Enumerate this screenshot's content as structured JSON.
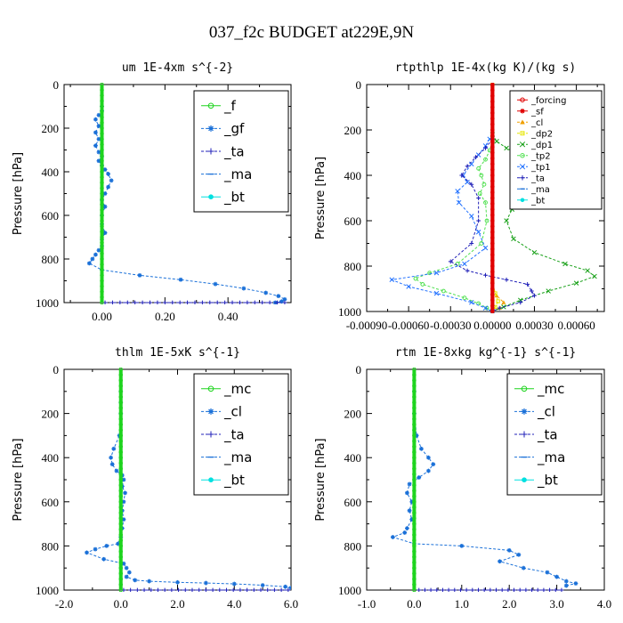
{
  "figure_title": "037_f2c  BUDGET at229E,9N",
  "colors": {
    "green": "#1fd41f",
    "blue": "#1a70d8",
    "navy": "#2020b8",
    "cyan": "#00e0e0",
    "red": "#e00000",
    "orange": "#f0a000",
    "yellow": "#e6e600",
    "darkgreen": "#18a018",
    "lightgreen": "#50e050",
    "midblue": "#2070ff"
  },
  "chart_data": [
    {
      "type": "line",
      "title": "um   1E-4xm s^{-2}",
      "ylabel": "Pressure [hPa]",
      "xlim": [
        -0.12,
        0.6
      ],
      "ylim": [
        1000,
        0
      ],
      "xticks": [
        0.0,
        0.2,
        0.4
      ],
      "xtick_labels": [
        "0.00",
        "0.20",
        "0.40"
      ],
      "yticks": [
        0,
        200,
        400,
        600,
        800,
        1000
      ],
      "ytick_labels": [
        "0",
        "200",
        "400",
        "600",
        "800",
        "1000"
      ],
      "legend": {
        "position": "top-right",
        "entries": [
          "_f",
          "_gf",
          "_ta",
          "_ma",
          "_bt"
        ],
        "font": 15
      },
      "series": [
        {
          "name": "_f",
          "color": "green",
          "marker": "circle",
          "style": "thick",
          "x": [
            0,
            0
          ],
          "y": [
            0,
            1000
          ]
        },
        {
          "name": "_gf",
          "color": "blue",
          "marker": "star",
          "style": "dashed",
          "x": [
            0.0,
            0.0,
            -0.01,
            -0.02,
            -0.01,
            -0.02,
            -0.01,
            -0.02,
            -0.01,
            0.0,
            -0.01,
            0.0,
            0.01,
            0.02,
            0.03,
            0.02,
            0.01,
            0.0,
            0.01,
            0.0,
            0.0,
            0.01,
            0.0,
            0.0,
            -0.01,
            -0.02,
            -0.03,
            -0.04,
            0.0,
            0.12,
            0.25,
            0.36,
            0.45,
            0.52,
            0.56,
            0.58,
            0.57,
            0.55
          ],
          "y": [
            100,
            120,
            140,
            160,
            190,
            220,
            250,
            280,
            310,
            330,
            350,
            370,
            390,
            410,
            440,
            470,
            500,
            530,
            560,
            600,
            640,
            680,
            710,
            740,
            760,
            780,
            800,
            820,
            850,
            875,
            895,
            915,
            935,
            955,
            970,
            985,
            995,
            1000
          ]
        },
        {
          "name": "_ta",
          "color": "navy",
          "marker": "plus",
          "style": "dashed",
          "x": [
            0.01,
            0.58
          ],
          "y": [
            1000,
            1000
          ]
        },
        {
          "name": "_ma",
          "color": "blue",
          "marker": "dash",
          "style": "dashed",
          "x": [
            0,
            0
          ],
          "y": [
            0,
            1000
          ]
        },
        {
          "name": "_bt",
          "color": "cyan",
          "marker": "dot",
          "style": "solid",
          "x": [
            0,
            0
          ],
          "y": [
            0,
            1000
          ]
        }
      ]
    },
    {
      "type": "line",
      "title": "rtpthlp   1E-4x(kg K)/(kg s)",
      "ylabel": "Pressure [hPa]",
      "xlim": [
        -0.0009,
        0.0008
      ],
      "ylim": [
        1000,
        0
      ],
      "xticks": [
        -0.0009,
        -0.0006,
        -0.0003,
        0.0,
        0.0003,
        0.0006
      ],
      "xtick_labels": [
        "-0.00090",
        "-0.00060",
        "-0.00030",
        "0.00000",
        "0.00030",
        "0.00060"
      ],
      "yticks": [
        0,
        200,
        400,
        600,
        800,
        1000
      ],
      "ytick_labels": [
        "0",
        "200",
        "400",
        "600",
        "800",
        "1000"
      ],
      "legend": {
        "position": "top-right",
        "entries": [
          "_forcing",
          "_sf",
          "_cl",
          "_dp2",
          "_dp1",
          "_tp2",
          "_tp1",
          "_ta",
          "_ma",
          "_bt"
        ],
        "font": 10
      },
      "series": [
        {
          "name": "_forcing",
          "color": "red",
          "marker": "circle",
          "style": "thick",
          "x": [
            0,
            0
          ],
          "y": [
            0,
            1000
          ]
        },
        {
          "name": "_sf",
          "color": "red",
          "marker": "star",
          "style": "thick",
          "x": [
            0,
            0
          ],
          "y": [
            0,
            1000
          ]
        },
        {
          "name": "_cl",
          "color": "orange",
          "marker": "triangle",
          "style": "dashed",
          "x": [
            0.0,
            0.0,
            0.0,
            3e-05,
            8e-05,
            5e-05,
            0.0
          ],
          "y": [
            0,
            850,
            900,
            930,
            960,
            985,
            1000
          ]
        },
        {
          "name": "_dp2",
          "color": "yellow",
          "marker": "square",
          "style": "dashed",
          "x": [
            0.0,
            0.0,
            2e-05,
            4e-05,
            2e-05,
            0.0
          ],
          "y": [
            0,
            870,
            920,
            955,
            980,
            1000
          ]
        },
        {
          "name": "_dp1",
          "color": "darkgreen",
          "marker": "x",
          "style": "dashed",
          "x": [
            0.0,
            3e-05,
            0.0001,
            0.0002,
            0.00032,
            0.00042,
            0.0005,
            0.00052,
            0.00043,
            0.0003,
            0.00022,
            0.00014,
            0.0001,
            0.00015,
            0.0003,
            0.00052,
            0.00068,
            0.00073,
            0.0006,
            0.0004,
            0.0002,
            8e-05,
            0.0
          ],
          "y": [
            220,
            250,
            280,
            310,
            340,
            370,
            400,
            420,
            440,
            460,
            500,
            550,
            600,
            680,
            740,
            790,
            820,
            845,
            875,
            910,
            950,
            980,
            1000
          ]
        },
        {
          "name": "_tp2",
          "color": "lightgreen",
          "marker": "circle",
          "style": "dashed",
          "x": [
            0.0,
            -2e-05,
            -5e-05,
            -0.0001,
            -8e-05,
            -6e-05,
            -9e-05,
            -5e-05,
            -4e-05,
            -8e-05,
            -0.00025,
            -0.00045,
            -0.00055,
            -0.0005,
            -0.00035,
            -0.0002,
            -0.0001,
            -4e-05,
            0.0
          ],
          "y": [
            250,
            290,
            330,
            370,
            400,
            440,
            480,
            520,
            600,
            700,
            790,
            830,
            855,
            880,
            910,
            940,
            965,
            985,
            1000
          ]
        },
        {
          "name": "_tp1",
          "color": "midblue",
          "marker": "x",
          "style": "dashed",
          "x": [
            -2e-05,
            -5e-05,
            -0.0001,
            -0.00015,
            -0.00021,
            -0.00018,
            -0.00025,
            -0.00024,
            -0.00015,
            -0.0001,
            -5e-05,
            -0.0002,
            -0.0004,
            -0.00072,
            -0.0006,
            -0.0004,
            -0.00015,
            -5e-05,
            0.0
          ],
          "y": [
            240,
            270,
            310,
            350,
            400,
            430,
            470,
            520,
            580,
            650,
            720,
            790,
            830,
            860,
            890,
            920,
            960,
            985,
            1000
          ]
        },
        {
          "name": "_ta",
          "color": "navy",
          "marker": "plus",
          "style": "dashed",
          "x": [
            0.0,
            -5e-05,
            -0.00012,
            -0.00018,
            -0.00022,
            -0.00015,
            -0.0001,
            -0.0001,
            -0.00015,
            -0.0003,
            -0.00018,
            -5e-05,
            0.0001,
            0.00025,
            0.00028,
            0.0003,
            0.0002,
            5e-05,
            0.0
          ],
          "y": [
            240,
            280,
            320,
            360,
            400,
            440,
            500,
            600,
            700,
            780,
            820,
            840,
            860,
            880,
            910,
            930,
            960,
            985,
            1000
          ]
        },
        {
          "name": "_ma",
          "color": "blue",
          "marker": "dash",
          "style": "dashed",
          "x": [
            0,
            0
          ],
          "y": [
            0,
            1000
          ]
        },
        {
          "name": "_bt",
          "color": "cyan",
          "marker": "dot",
          "style": "solid",
          "x": [
            0,
            0
          ],
          "y": [
            0,
            1000
          ]
        }
      ]
    },
    {
      "type": "line",
      "title": "thlm   1E-5xK s^{-1}",
      "ylabel": "Pressure [hPa]",
      "xlim": [
        -2.0,
        6.0
      ],
      "ylim": [
        1000,
        0
      ],
      "xticks": [
        -2,
        0,
        2,
        4,
        6
      ],
      "xtick_labels": [
        "-2.0",
        "0.0",
        "2.0",
        "4.0",
        "6.0"
      ],
      "yticks": [
        0,
        200,
        400,
        600,
        800,
        1000
      ],
      "ytick_labels": [
        "0",
        "200",
        "400",
        "600",
        "800",
        "1000"
      ],
      "legend": {
        "position": "top-right",
        "entries": [
          "_mc",
          "_cl",
          "_ta",
          "_ma",
          "_bt"
        ],
        "font": 15
      },
      "series": [
        {
          "name": "_mc",
          "color": "green",
          "marker": "circle",
          "style": "thick",
          "x": [
            0,
            0
          ],
          "y": [
            0,
            1000
          ]
        },
        {
          "name": "_cl",
          "color": "blue",
          "marker": "star",
          "style": "dashed",
          "x": [
            0.0,
            0.0,
            0.0,
            -0.05,
            -0.25,
            -0.35,
            -0.3,
            -0.15,
            0.05,
            0.1,
            0.05,
            0.15,
            0.1,
            0.05,
            0.1,
            0.05,
            0.0,
            -0.1,
            -0.5,
            -0.9,
            -1.2,
            -0.6,
            0.1,
            0.2,
            0.3,
            0.2,
            0.5,
            1.0,
            2.0,
            3.0,
            4.0,
            5.0,
            5.8,
            6.0
          ],
          "y": [
            100,
            150,
            200,
            300,
            360,
            400,
            430,
            460,
            480,
            500,
            530,
            560,
            600,
            640,
            680,
            720,
            760,
            790,
            800,
            815,
            830,
            860,
            880,
            900,
            920,
            940,
            955,
            960,
            965,
            968,
            972,
            978,
            985,
            990
          ]
        },
        {
          "name": "_ta",
          "color": "navy",
          "marker": "plus",
          "style": "dashed",
          "x": [
            0.1,
            5.9
          ],
          "y": [
            1000,
            1000
          ]
        },
        {
          "name": "_ma",
          "color": "blue",
          "marker": "dash",
          "style": "dashed",
          "x": [
            0,
            0
          ],
          "y": [
            0,
            1000
          ]
        },
        {
          "name": "_bt",
          "color": "cyan",
          "marker": "dot",
          "style": "solid",
          "x": [
            0,
            0
          ],
          "y": [
            0,
            1000
          ]
        }
      ]
    },
    {
      "type": "line",
      "title": "rtm   1E-8xkg kg^{-1} s^{-1}",
      "ylabel": "Pressure [hPa]",
      "xlim": [
        -1.0,
        4.0
      ],
      "ylim": [
        1000,
        0
      ],
      "xticks": [
        -1,
        0,
        1,
        2,
        3,
        4
      ],
      "xtick_labels": [
        "-1.0",
        "0.0",
        "1.0",
        "2.0",
        "3.0",
        "4.0"
      ],
      "yticks": [
        0,
        200,
        400,
        600,
        800,
        1000
      ],
      "ytick_labels": [
        "0",
        "200",
        "400",
        "600",
        "800",
        "1000"
      ],
      "legend": {
        "position": "top-right",
        "entries": [
          "_mc",
          "_cl",
          "_ta",
          "_ma",
          "_bt"
        ],
        "font": 15
      },
      "series": [
        {
          "name": "_mc",
          "color": "green",
          "marker": "circle",
          "style": "thick",
          "x": [
            0,
            0
          ],
          "y": [
            0,
            1000
          ]
        },
        {
          "name": "_cl",
          "color": "blue",
          "marker": "star",
          "style": "dashed",
          "x": [
            0.0,
            0.0,
            0.05,
            0.15,
            0.3,
            0.4,
            0.3,
            0.1,
            -0.1,
            -0.15,
            -0.05,
            -0.1,
            -0.05,
            -0.15,
            -0.2,
            -0.45,
            0.0,
            1.0,
            2.0,
            2.2,
            1.8,
            2.3,
            2.8,
            3.0,
            3.2,
            3.4,
            3.2
          ],
          "y": [
            100,
            200,
            300,
            360,
            400,
            430,
            460,
            490,
            520,
            560,
            600,
            640,
            680,
            720,
            740,
            760,
            790,
            800,
            820,
            840,
            870,
            900,
            920,
            940,
            960,
            970,
            980
          ]
        },
        {
          "name": "_ta",
          "color": "navy",
          "marker": "plus",
          "style": "dashed",
          "x": [
            0.1,
            3.1
          ],
          "y": [
            1000,
            1000
          ]
        },
        {
          "name": "_ma",
          "color": "blue",
          "marker": "dash",
          "style": "dashed",
          "x": [
            0,
            0
          ],
          "y": [
            0,
            1000
          ]
        },
        {
          "name": "_bt",
          "color": "cyan",
          "marker": "dot",
          "style": "solid",
          "x": [
            0,
            0
          ],
          "y": [
            0,
            1000
          ]
        }
      ]
    }
  ]
}
